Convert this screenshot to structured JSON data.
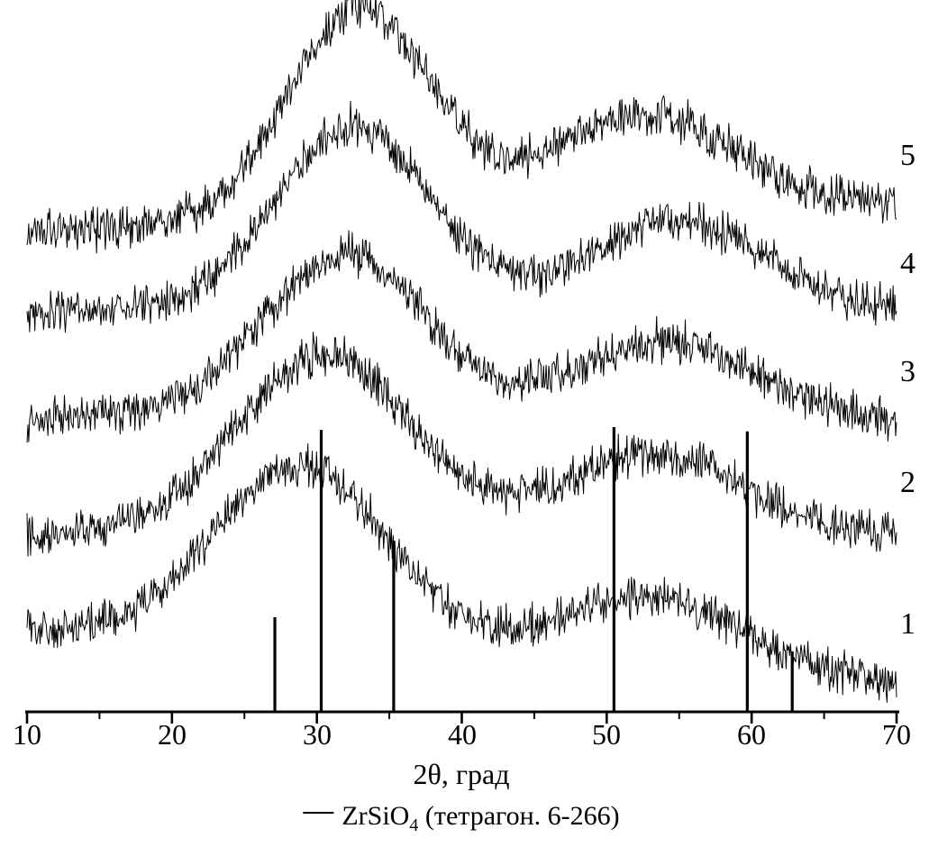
{
  "figure": {
    "xlabel": "2θ, град",
    "legend": {
      "formula_base": "ZrSiO",
      "formula_sub": "4",
      "suffix": " (тетрагон. 6-266)"
    }
  },
  "chart_data": {
    "type": "line",
    "xlabel": "2θ, град",
    "xlim": [
      10,
      70
    ],
    "x_major_ticks": [
      10,
      20,
      30,
      40,
      50,
      60,
      70
    ],
    "x_minor_ticks": [
      15,
      25,
      35,
      45,
      55,
      65
    ],
    "grid": false,
    "legend_position": "bottom",
    "legend_text": "ZrSiO4 (тетрагон. 6-266)",
    "description": "Five noisy amorphous-halo XRD traces (samples 1–5) vertically offset, broad maxima near 2θ≈30–33° and ≈53°, with ZrSiO4 tetragonal reference stick pattern",
    "series": [
      {
        "label": "1",
        "seed": 1101,
        "base_start": 115,
        "base_end": 40,
        "noise": 18,
        "peaks": [
          {
            "center": 29.0,
            "amplitude": 255,
            "width": 8.5
          },
          {
            "center": 53.0,
            "amplitude": 100,
            "width": 9.0
          }
        ]
      },
      {
        "label": "2",
        "seed": 2202,
        "base_start": 250,
        "base_end": 250,
        "noise": 18,
        "peaks": [
          {
            "center": 30.5,
            "amplitude": 255,
            "width": 8.5
          },
          {
            "center": 53.0,
            "amplitude": 115,
            "width": 9.0
          }
        ]
      },
      {
        "label": "3",
        "seed": 3303,
        "base_start": 415,
        "base_end": 408,
        "noise": 18,
        "peaks": [
          {
            "center": 32.0,
            "amplitude": 235,
            "width": 8.0
          },
          {
            "center": 54.0,
            "amplitude": 115,
            "width": 9.0
          }
        ]
      },
      {
        "label": "4",
        "seed": 4404,
        "base_start": 567,
        "base_end": 562,
        "noise": 18,
        "peaks": [
          {
            "center": 32.5,
            "amplitude": 265,
            "width": 7.5
          },
          {
            "center": 55.0,
            "amplitude": 130,
            "width": 9.0
          }
        ]
      },
      {
        "label": "5",
        "seed": 5505,
        "base_start": 680,
        "base_end": 715,
        "noise": 18,
        "peaks": [
          {
            "center": 33.0,
            "amplitude": 300,
            "width": 7.0
          },
          {
            "center": 52.5,
            "amplitude": 140,
            "width": 9.0
          }
        ]
      }
    ],
    "reference_pattern": {
      "name": "ZrSiO4 (тетрагон. 6-266)",
      "lines": [
        {
          "two_theta": 27.1,
          "rel_intensity": 0.33
        },
        {
          "two_theta": 30.3,
          "rel_intensity": 0.99
        },
        {
          "two_theta": 35.3,
          "rel_intensity": 0.6
        },
        {
          "two_theta": 50.5,
          "rel_intensity": 1.0
        },
        {
          "two_theta": 59.7,
          "rel_intensity": 0.985
        },
        {
          "two_theta": 62.8,
          "rel_intensity": 0.21
        }
      ]
    }
  }
}
